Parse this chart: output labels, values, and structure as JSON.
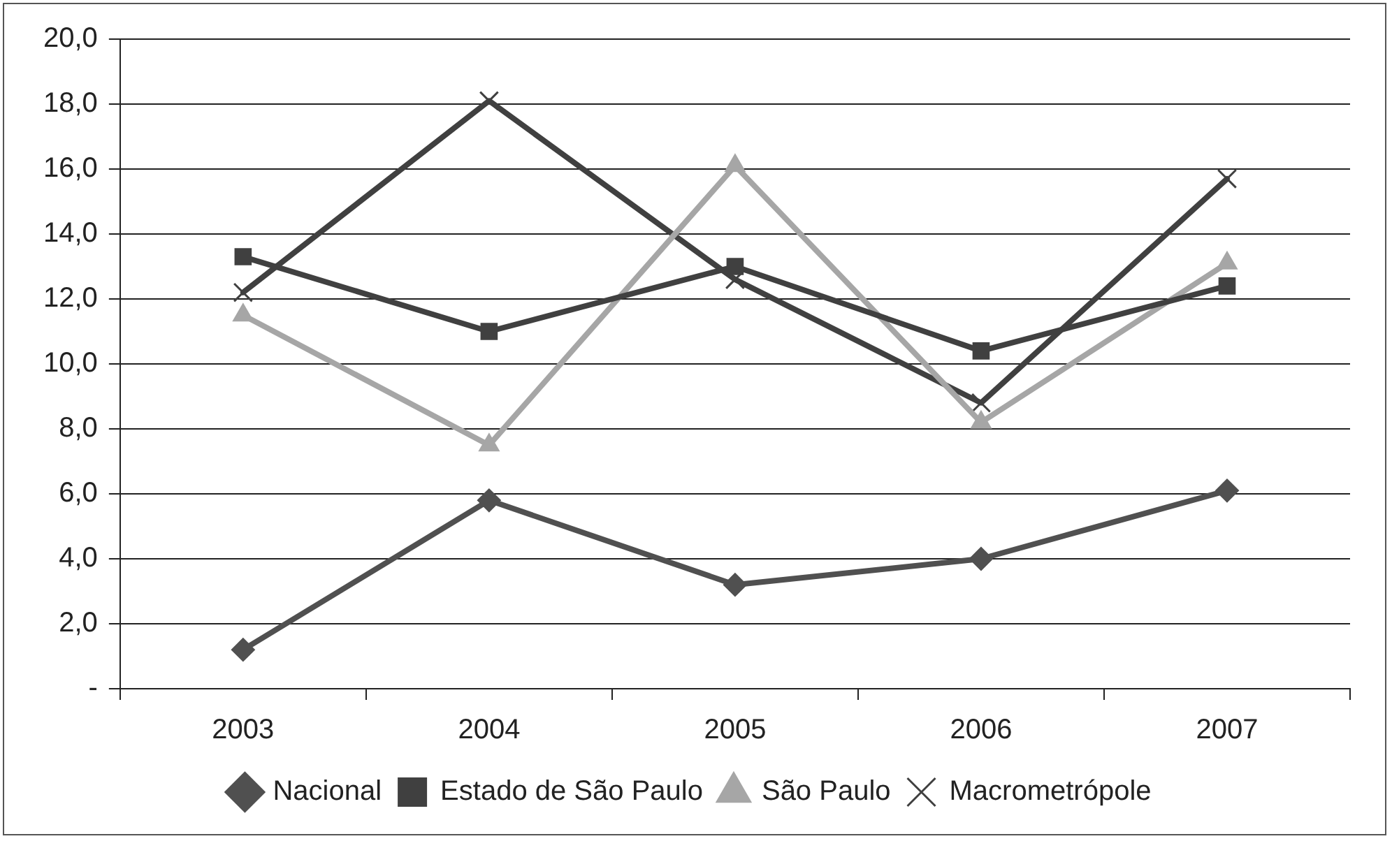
{
  "chart_data": {
    "type": "line",
    "categories": [
      "2003",
      "2004",
      "2005",
      "2006",
      "2007"
    ],
    "series": [
      {
        "name": "Nacional",
        "color": "#505050",
        "marker": "diamond",
        "values": [
          1.2,
          5.8,
          3.2,
          4.0,
          6.1
        ]
      },
      {
        "name": "Estado de São Paulo",
        "color": "#404040",
        "marker": "square",
        "values": [
          13.3,
          11.0,
          13.0,
          10.4,
          12.4
        ]
      },
      {
        "name": "São Paulo",
        "color": "#a6a6a6",
        "marker": "triangle",
        "values": [
          11.5,
          7.5,
          16.1,
          8.2,
          13.1
        ]
      },
      {
        "name": "Macrometrópole",
        "color": "#404040",
        "marker": "cross",
        "values": [
          12.2,
          18.1,
          12.6,
          8.8,
          15.7
        ]
      }
    ],
    "ylim": [
      0,
      20
    ],
    "yticks": [
      {
        "value": 0,
        "label": "-"
      },
      {
        "value": 2,
        "label": "2,0"
      },
      {
        "value": 4,
        "label": "4,0"
      },
      {
        "value": 6,
        "label": "6,0"
      },
      {
        "value": 8,
        "label": "8,0"
      },
      {
        "value": 10,
        "label": "10,0"
      },
      {
        "value": 12,
        "label": "12,0"
      },
      {
        "value": 14,
        "label": "14,0"
      },
      {
        "value": 16,
        "label": "16,0"
      },
      {
        "value": 18,
        "label": "18,0"
      },
      {
        "value": 20,
        "label": "20,0"
      }
    ],
    "grid": "y",
    "legend": "bottom",
    "line_style": "solid"
  }
}
